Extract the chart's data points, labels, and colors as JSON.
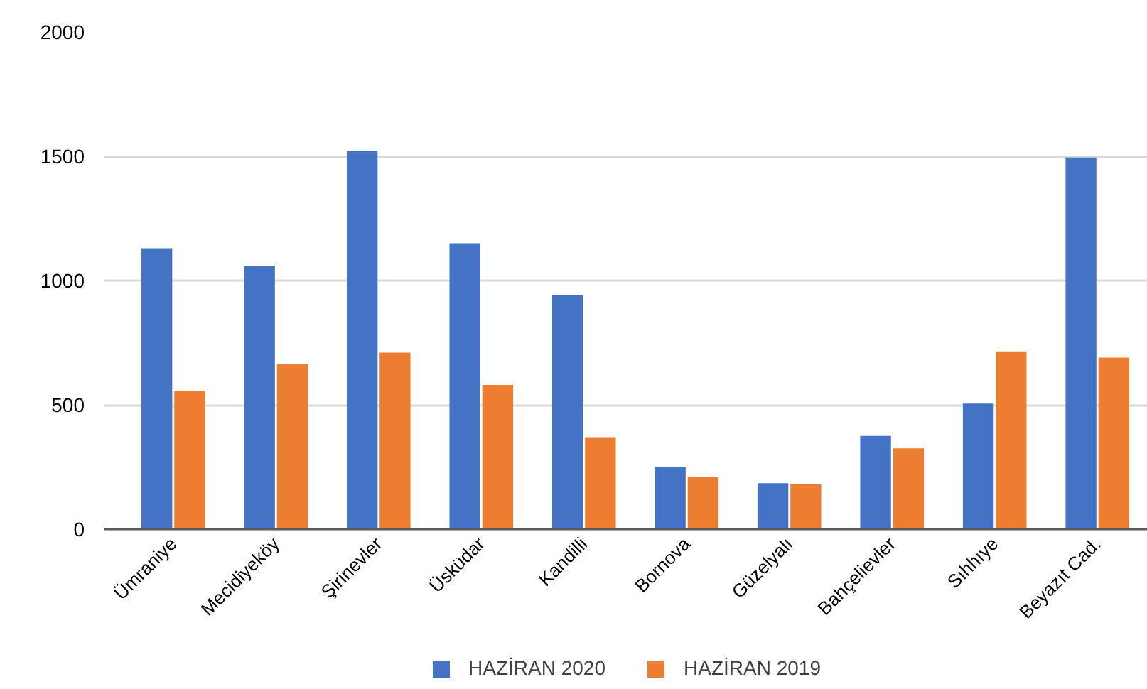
{
  "chart_data": {
    "type": "bar",
    "categories": [
      "Ümraniye",
      "Mecidiyeköy",
      "Şirinevler",
      "Üsküdar",
      "Kandilli",
      "Bornova",
      "Güzelyalı",
      "Bahçelievler",
      "Sıhhıye",
      "Beyazıt Cad."
    ],
    "series": [
      {
        "name": "HAZİRAN 2020",
        "color": "#4472c4",
        "values": [
          1130,
          1060,
          1520,
          1150,
          940,
          250,
          185,
          375,
          505,
          1495
        ]
      },
      {
        "name": "HAZİRAN 2019",
        "color": "#ed7d31",
        "values": [
          555,
          665,
          710,
          580,
          370,
          210,
          180,
          325,
          715,
          690
        ]
      }
    ],
    "ylim": [
      0,
      2000
    ],
    "yticks": [
      0,
      500,
      1000,
      1500,
      2000
    ],
    "grid": "y",
    "legend": "bottom"
  }
}
